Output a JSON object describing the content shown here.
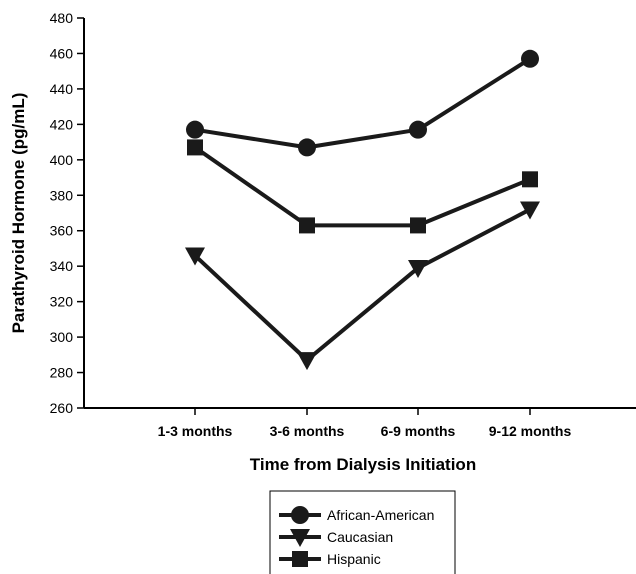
{
  "chart_data": {
    "type": "line",
    "title": "",
    "xlabel": "Time from Dialysis Initiation",
    "ylabel": "Parathyroid Hormone (pg/mL)",
    "categories": [
      "1-3 months",
      "3-6 months",
      "6-9 months",
      "9-12 months"
    ],
    "ylim": [
      260,
      480
    ],
    "yticks": [
      "260",
      "280",
      "300",
      "320",
      "340",
      "360",
      "380",
      "400",
      "420",
      "440",
      "460",
      "480"
    ],
    "grid": false,
    "legend_position": "bottom-center",
    "series": [
      {
        "name": "African-American",
        "marker": "circle",
        "color": "#1a1a1a",
        "values": [
          417,
          407,
          417,
          457
        ]
      },
      {
        "name": "Caucasian",
        "marker": "triangle-down",
        "color": "#1a1a1a",
        "values": [
          346,
          287,
          339,
          372
        ]
      },
      {
        "name": "Hispanic",
        "marker": "square",
        "color": "#1a1a1a",
        "values": [
          407,
          363,
          363,
          389
        ]
      }
    ]
  }
}
